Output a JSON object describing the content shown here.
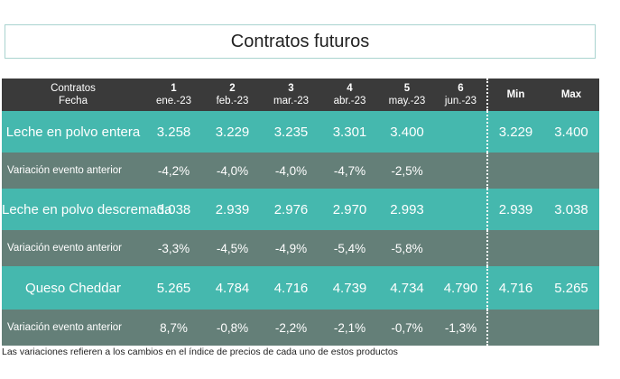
{
  "title": "Contratos futuros",
  "header": {
    "label_top": "Contratos",
    "label_bottom": "Fecha",
    "columns": [
      {
        "num": "1",
        "date": "ene.-23"
      },
      {
        "num": "2",
        "date": "feb.-23"
      },
      {
        "num": "3",
        "date": "mar.-23"
      },
      {
        "num": "4",
        "date": "abr.-23"
      },
      {
        "num": "5",
        "date": "may.-23"
      },
      {
        "num": "6",
        "date": "jun.-23"
      }
    ],
    "min": "Min",
    "max": "Max"
  },
  "rows": [
    {
      "name": "Leche en polvo entera",
      "values": [
        "3.258",
        "3.229",
        "3.235",
        "3.301",
        "3.400",
        ""
      ],
      "min": "3.229",
      "max": "3.400"
    },
    {
      "name": "Variación evento anterior",
      "values": [
        "-4,2%",
        "-4,0%",
        "-4,0%",
        "-4,7%",
        "-2,5%",
        ""
      ],
      "min": "",
      "max": ""
    },
    {
      "name": "Leche en polvo descremada",
      "values": [
        "3.038",
        "2.939",
        "2.976",
        "2.970",
        "2.993",
        ""
      ],
      "min": "2.939",
      "max": "3.038"
    },
    {
      "name": "Variación evento anterior",
      "values": [
        "-3,3%",
        "-4,5%",
        "-4,9%",
        "-5,4%",
        "-5,8%",
        ""
      ],
      "min": "",
      "max": ""
    },
    {
      "name": "Queso Cheddar",
      "values": [
        "5.265",
        "4.784",
        "4.716",
        "4.739",
        "4.734",
        "4.790"
      ],
      "min": "4.716",
      "max": "5.265"
    },
    {
      "name": "Variación evento anterior",
      "values": [
        "8,7%",
        "-0,8%",
        "-2,2%",
        "-2,1%",
        "-0,7%",
        "-1,3%"
      ],
      "min": "",
      "max": ""
    }
  ],
  "footnote": "Las variaciones refieren a los cambios en el índice de precios de cada uno de estos productos",
  "colors": {
    "header_bg": "#3a3a3a",
    "product_row_bg": "#45b8ae",
    "variation_row_bg": "#647f78"
  }
}
